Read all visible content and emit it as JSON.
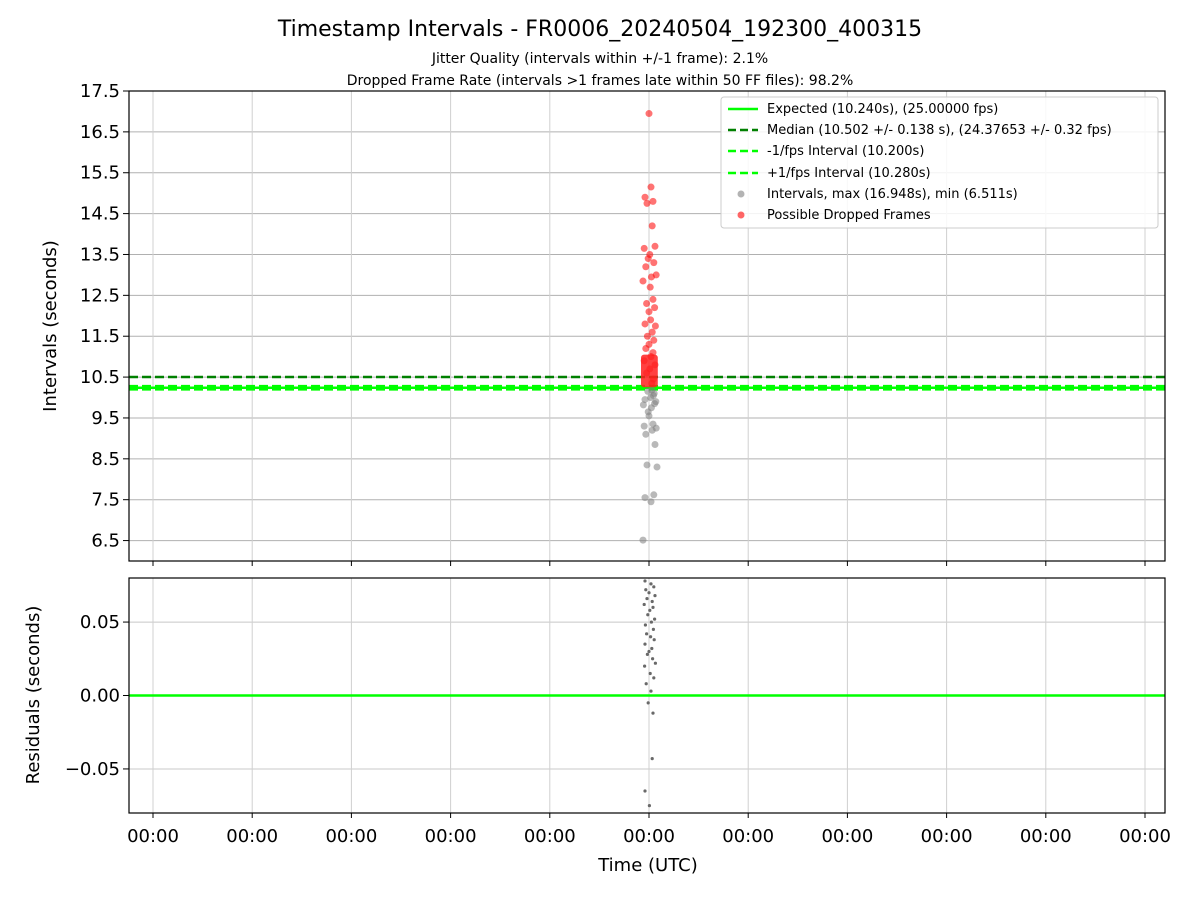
{
  "chart_data": [
    {
      "type": "scatter",
      "title": "Timestamp Intervals - FR0006_20240504_192300_400315",
      "subtitle_lines": [
        "Jitter Quality (intervals within +/-1 frame): 2.1%",
        "Dropped Frame Rate (intervals >1 frames late within 50 FF files): 98.2%"
      ],
      "ylabel": "Intervals (seconds)",
      "ylim": [
        6.0,
        17.5
      ],
      "yticks": [
        6.5,
        7.5,
        8.5,
        9.5,
        10.5,
        11.5,
        12.5,
        13.5,
        14.5,
        15.5,
        16.5,
        17.5
      ],
      "ytick_labels": [
        "6.5",
        "7.5",
        "8.5",
        "9.5",
        "10.5",
        "11.5",
        "12.5",
        "13.5",
        "14.5",
        "15.5",
        "16.5",
        "17.5"
      ],
      "grid": true,
      "legend_position": "top-right",
      "reference_lines": [
        {
          "name": "Expected (10.240s), (25.00000 fps)",
          "y": 10.24,
          "style": "solid",
          "color": "#00ff00"
        },
        {
          "name": "Median (10.502 +/- 0.138 s), (24.37653 +/- 0.32 fps)",
          "y": 10.502,
          "style": "dashed",
          "color": "#008000"
        },
        {
          "name": "-1/fps Interval (10.200s)",
          "y": 10.2,
          "style": "dashed",
          "color": "#00ff00"
        },
        {
          "name": "+1/fps Interval (10.280s)",
          "y": 10.28,
          "style": "dashed",
          "color": "#00ff00"
        }
      ],
      "series": [
        {
          "name": "Intervals, max (16.948s), min (6.511s)",
          "color": "#808080",
          "x": [
            -0.15,
            0.05,
            -0.1,
            0.12,
            0.2,
            -0.05,
            0.15,
            -0.08,
            0.08,
            0.18,
            -0.12,
            0.1,
            0.0,
            -0.02,
            0.06,
            -0.14,
            0.14,
            0.17,
            -0.1,
            0.04,
            0.11,
            0.13,
            -0.03,
            0.07
          ],
          "y": [
            6.511,
            7.45,
            7.55,
            7.62,
            8.3,
            8.35,
            8.85,
            9.1,
            9.2,
            9.25,
            9.3,
            9.35,
            9.55,
            9.65,
            9.75,
            9.82,
            9.85,
            9.9,
            9.95,
            10.0,
            10.05,
            10.1,
            10.15,
            10.18
          ]
        },
        {
          "name": "Possible Dropped Frames",
          "color": "#ff0000",
          "x": [
            0.0,
            0.05,
            -0.1,
            0.1,
            -0.05,
            0.08,
            -0.12,
            0.15,
            0.02,
            -0.02,
            0.12,
            -0.08,
            0.18,
            0.06,
            -0.15,
            0.03,
            0.1,
            -0.06,
            0.14,
            0.0,
            0.04,
            -0.1,
            0.16,
            0.08,
            -0.04,
            0.12,
            0.0,
            -0.08,
            0.1,
            0.05,
            -0.12,
            0.15,
            0.02,
            -0.06,
            0.11,
            0.07
          ],
          "y": [
            16.948,
            15.15,
            14.9,
            14.8,
            14.75,
            14.2,
            13.65,
            13.7,
            13.5,
            13.4,
            13.3,
            13.2,
            13.0,
            12.95,
            12.85,
            12.7,
            12.4,
            12.3,
            12.2,
            12.1,
            11.9,
            11.8,
            11.75,
            11.6,
            11.5,
            11.4,
            11.3,
            11.2,
            11.1,
            11.0,
            10.9,
            10.8,
            10.7,
            10.6,
            10.45,
            10.35
          ]
        }
      ]
    },
    {
      "type": "scatter",
      "ylabel": "Residuals (seconds)",
      "xlabel": "Time (UTC)",
      "ylim": [
        -0.08,
        0.08
      ],
      "yticks": [
        -0.05,
        0.0,
        0.05
      ],
      "ytick_labels": [
        "−0.05",
        "0.00",
        "0.05"
      ],
      "xtick_labels": [
        "00:00",
        "00:00",
        "00:00",
        "00:00",
        "00:00",
        "00:00",
        "00:00",
        "00:00",
        "00:00",
        "00:00",
        "00:00"
      ],
      "grid": true,
      "reference_lines": [
        {
          "y": 0.0,
          "style": "solid",
          "color": "#00ff00"
        }
      ],
      "series": [
        {
          "color": "#696969",
          "x": [
            -0.1,
            0.05,
            0.12,
            -0.08,
            0.0,
            0.15,
            -0.05,
            0.08,
            -0.12,
            0.1,
            0.02,
            -0.03,
            0.14,
            0.06,
            -0.09,
            0.11,
            -0.06,
            0.04,
            0.13,
            -0.1,
            0.07,
            0.0,
            -0.04,
            0.09,
            0.16,
            -0.11,
            0.03,
            0.12,
            -0.07,
            0.05,
            -0.02,
            0.1,
            -0.1,
            0.01,
            0.08
          ],
          "y": [
            0.078,
            0.076,
            0.074,
            0.072,
            0.07,
            0.068,
            0.066,
            0.064,
            0.062,
            0.06,
            0.058,
            0.055,
            0.052,
            0.05,
            0.048,
            0.045,
            0.042,
            0.04,
            0.038,
            0.035,
            0.032,
            0.03,
            0.028,
            0.025,
            0.022,
            0.02,
            0.015,
            0.012,
            0.008,
            0.003,
            -0.005,
            -0.012,
            -0.065,
            -0.075,
            -0.043
          ]
        }
      ]
    }
  ]
}
